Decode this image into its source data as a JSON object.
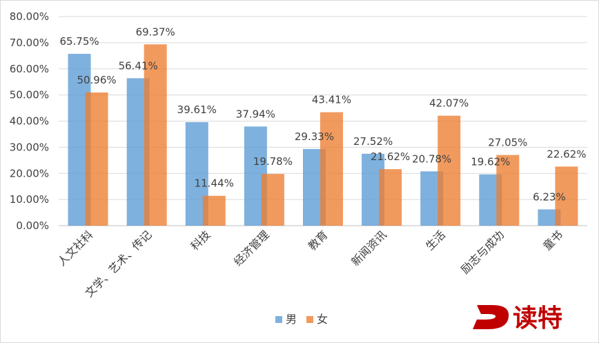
{
  "chart_data": {
    "type": "bar",
    "categories": [
      "人文社科",
      "文学、艺术、传记",
      "科技",
      "经济管理",
      "教育",
      "新闻资讯",
      "生活",
      "励志与成功",
      "童书"
    ],
    "series": [
      {
        "name": "男",
        "color": "#5b9bd5",
        "values": [
          65.75,
          56.41,
          39.61,
          37.94,
          29.33,
          27.52,
          20.78,
          19.62,
          6.23
        ],
        "labels": [
          "65.75%",
          "56.41%",
          "39.61%",
          "37.94%",
          "29.33%",
          "27.52%",
          "20.78%",
          "19.62%",
          "6.23%"
        ]
      },
      {
        "name": "女",
        "color": "#ed7d31",
        "values": [
          50.96,
          69.37,
          11.44,
          19.78,
          43.41,
          21.62,
          42.07,
          27.05,
          22.62
        ],
        "labels": [
          "50.96%",
          "69.37%",
          "11.44%",
          "19.78%",
          "43.41%",
          "21.62%",
          "42.07%",
          "27.05%",
          "22.62%"
        ]
      }
    ],
    "y_ticks": [
      "0.00%",
      "10.00%",
      "20.00%",
      "30.00%",
      "40.00%",
      "50.00%",
      "60.00%",
      "70.00%",
      "80.00%"
    ],
    "ylim": [
      0,
      80
    ],
    "grid": true,
    "legend_position": "bottom",
    "title": "",
    "xlabel": "",
    "ylabel": ""
  },
  "watermark": {
    "text": "D读特",
    "color": "#c00000"
  }
}
